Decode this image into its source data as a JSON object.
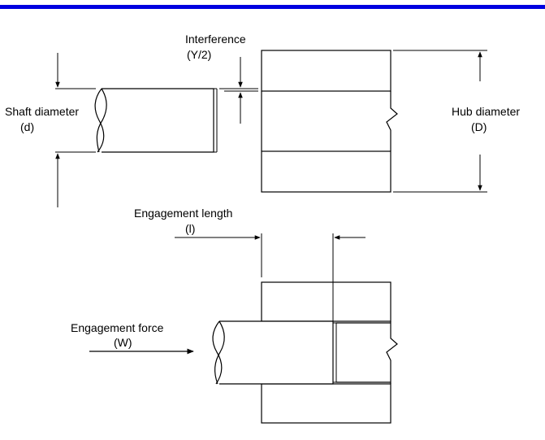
{
  "colors": {
    "top_bar": "#0000e0",
    "line": "#000000",
    "background": "#ffffff"
  },
  "labels": {
    "interference_line1": "Interference",
    "interference_line2": "(Y/2)",
    "shaft_line1": "Shaft diameter",
    "shaft_line2": "(d)",
    "hub_line1": "Hub diameter",
    "hub_line2": "(D)",
    "engagement_length_line1": "Engagement length",
    "engagement_length_line2": "(l)",
    "engagement_force_line1": "Engagement force",
    "engagement_force_line2": "(W)"
  }
}
